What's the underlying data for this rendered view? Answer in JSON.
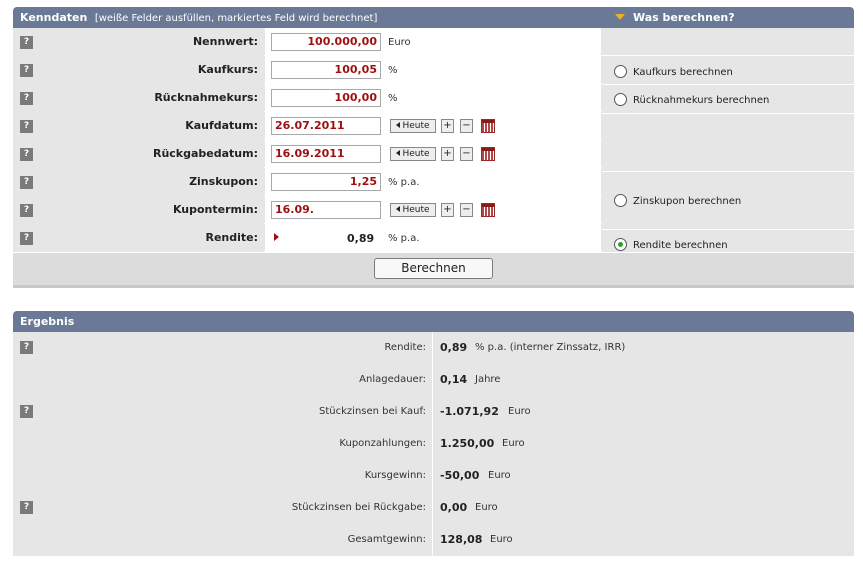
{
  "kenndaten": {
    "title": "Kenndaten",
    "hint": "[weiße Felder ausfüllen, markiertes Feld wird berechnet]",
    "was_berechnen": "Was berechnen?",
    "help_glyph": "?",
    "rows": {
      "nennwert": {
        "label": "Nennwert:",
        "value": "100.000,00",
        "unit": "Euro"
      },
      "kaufkurs": {
        "label": "Kaufkurs:",
        "value": "100,05",
        "unit": "%"
      },
      "ruecknahmekurs": {
        "label": "Rücknahmekurs:",
        "value": "100,00",
        "unit": "%"
      },
      "kaufdatum": {
        "label": "Kaufdatum:",
        "value": "26.07.2011"
      },
      "rueckgabedatum": {
        "label": "Rückgabedatum:",
        "value": "16.09.2011"
      },
      "zinskupon": {
        "label": "Zinskupon:",
        "value": "1,25",
        "unit": "% p.a."
      },
      "kupontermin": {
        "label": "Kupontermin:",
        "value": "16.09."
      },
      "rendite": {
        "label": "Rendite:",
        "value": "0,89",
        "unit": "% p.a."
      }
    },
    "date_controls": {
      "heute": "Heute",
      "plus": "+",
      "minus": "−"
    },
    "options": {
      "kaufkurs": {
        "label": "Kaufkurs berechnen",
        "checked": false
      },
      "ruecknahmekurs": {
        "label": "Rücknahmekurs berechnen",
        "checked": false
      },
      "zinskupon": {
        "label": "Zinskupon berechnen",
        "checked": false
      },
      "rendite": {
        "label": "Rendite berechnen",
        "checked": true
      }
    },
    "button": "Berechnen"
  },
  "ergebnis": {
    "title": "Ergebnis",
    "rows": {
      "rendite": {
        "label": "Rendite:",
        "value": "0,89",
        "unit": "% p.a.  (interner Zinssatz, IRR)"
      },
      "anlagedauer": {
        "label": "Anlagedauer:",
        "value": "0,14",
        "unit": "Jahre"
      },
      "stueckzinsen_kauf": {
        "label": "Stückzinsen bei Kauf:",
        "value": "-1.071,92",
        "unit": "Euro"
      },
      "kuponzahlungen": {
        "label": "Kuponzahlungen:",
        "value": "1.250,00",
        "unit": "Euro"
      },
      "kursgewinn": {
        "label": "Kursgewinn:",
        "value": "-50,00",
        "unit": "Euro"
      },
      "stueckzinsen_rueckgabe": {
        "label": "Stückzinsen bei Rückgabe:",
        "value": "0,00",
        "unit": "Euro"
      },
      "gesamtgewinn": {
        "label": "Gesamtgewinn:",
        "value": "128,08",
        "unit": "Euro"
      }
    }
  },
  "colors": {
    "header_bg": "#6a7a96",
    "input_text": "#9e1010",
    "radio_checked": "#2aa02a",
    "arrow": "#f0b020"
  }
}
